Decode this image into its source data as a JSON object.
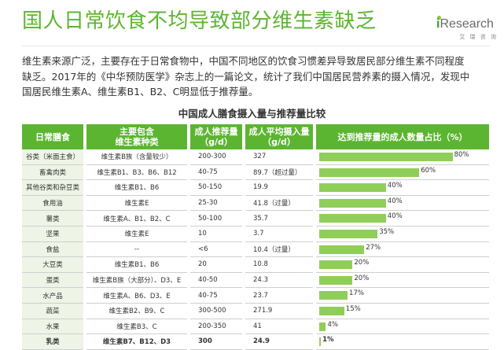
{
  "header": {
    "title": "国人日常饮食不均导致部分维生素缺乏",
    "logo_i": "i",
    "logo_rest": "Research",
    "logo_sub": "艾 瑞 咨 询"
  },
  "intro": {
    "line1": "维生素来源广泛，主要存在于日常食物中，中国不同地区的饮食习惯差异导致居民部分维生素不同程度",
    "line2": "缺乏。2017年的《中华预防医学》杂志上的一篇论文，统计了我们中国居民营养素的摄入情况，发现中",
    "line3": "国居民维生素A、维生素B1、B2、C明显低于推荐量。"
  },
  "chart_data": {
    "type": "table",
    "title": "中国成人膳食摄入量与推荐量比较",
    "columns": {
      "food": "日常膳食",
      "vit": "主要包含维生素种类",
      "vit_line1": "主要包含",
      "vit_line2": "维生素种类",
      "rec": "成人推荐量（g/d）",
      "rec_line1": "成人推荐量",
      "rec_line2": "（g/d）",
      "avg": "成人平均摄入量（g/d）",
      "avg_line1": "成人平均摄入量",
      "avg_line2": "（g/d）",
      "pct": "达到推荐量的成人数量占比（%）"
    },
    "xlim": [
      0,
      100
    ],
    "bar_color": "#8fce59",
    "header_color": "#5cb531",
    "rows": [
      {
        "food": "谷类（米面主食）",
        "vit": "维生素B族（含量较少）",
        "rec": "200-300",
        "avg": "327",
        "value": 80,
        "label": "80%"
      },
      {
        "food": "畜禽肉类",
        "vit": "维生素B1、B3、B6、B12",
        "rec": "40-75",
        "avg": "89.7（超过量）",
        "value": 60,
        "label": "60%"
      },
      {
        "food": "其他谷类和杂豆类",
        "vit": "维生素B1、B6",
        "rec": "50-150",
        "avg": "19.9",
        "value": 40,
        "label": "40%"
      },
      {
        "food": "食用油",
        "vit": "维生素E",
        "rec": "25-30",
        "avg": "41.8（过量）",
        "value": 40,
        "label": "40%"
      },
      {
        "food": "薯类",
        "vit": "维生素A、B1、B2、C",
        "rec": "50-100",
        "avg": "35.7",
        "value": 40,
        "label": "40%"
      },
      {
        "food": "坚果",
        "vit": "维生素E",
        "rec": "10",
        "avg": "3.7",
        "value": 35,
        "label": "35%"
      },
      {
        "food": "食盐",
        "vit": "--",
        "rec": "<6",
        "avg": "10.4（过量）",
        "value": 27,
        "label": "27%"
      },
      {
        "food": "大豆类",
        "vit": "维生素B1、B6",
        "rec": "20",
        "avg": "10.8",
        "value": 20,
        "label": "20%"
      },
      {
        "food": "蛋类",
        "vit": "维生素B族（大部分）、D3、E",
        "rec": "40-50",
        "avg": "24.3",
        "value": 20,
        "label": "20%"
      },
      {
        "food": "水产品",
        "vit": "维生素A、B6、D3、E",
        "rec": "40-75",
        "avg": "23.7",
        "value": 17,
        "label": "17%"
      },
      {
        "food": "蔬菜",
        "vit": "维生素B2、B9、C",
        "rec": "300-500",
        "avg": "271.9",
        "value": 15,
        "label": "15%"
      },
      {
        "food": "水果",
        "vit": "维生素B3、C",
        "rec": "200-350",
        "avg": "41",
        "value": 4,
        "label": "4%"
      },
      {
        "food": "乳类",
        "vit": "维生素B7、B12、D3",
        "rec": "300",
        "avg": "24.9",
        "value": 1,
        "label": "1%"
      }
    ]
  }
}
